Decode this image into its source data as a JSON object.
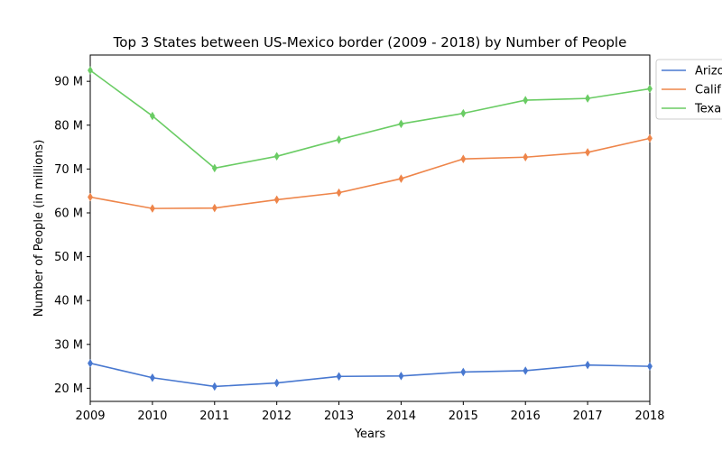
{
  "chart_data": {
    "type": "line",
    "title": "Top 3 States between US-Mexico border (2009 - 2018) by Number of People",
    "xlabel": "Years",
    "ylabel": "Number of People (in millions)",
    "x": [
      2009,
      2010,
      2011,
      2012,
      2013,
      2014,
      2015,
      2016,
      2017,
      2018
    ],
    "xlim": [
      2009,
      2018
    ],
    "ylim": [
      17,
      96
    ],
    "yticks": [
      20,
      30,
      40,
      50,
      60,
      70,
      80,
      90
    ],
    "ytick_suffix": " M",
    "grid": false,
    "legend_position": "upper-right-outside",
    "series": [
      {
        "name": "Arizona",
        "legend_label": "Arizo",
        "color": "#4878d0",
        "values": [
          25.7,
          22.4,
          20.4,
          21.2,
          22.7,
          22.8,
          23.7,
          24.0,
          25.3,
          25.0
        ]
      },
      {
        "name": "California",
        "legend_label": "Calif",
        "color": "#ee854a",
        "values": [
          63.6,
          61.0,
          61.1,
          63.0,
          64.6,
          67.8,
          72.3,
          72.7,
          73.8,
          77.0
        ]
      },
      {
        "name": "Texas",
        "legend_label": "Texa",
        "color": "#6acc64",
        "values": [
          92.5,
          82.1,
          70.2,
          72.9,
          76.7,
          80.3,
          82.7,
          85.7,
          86.1,
          88.3
        ]
      }
    ]
  }
}
